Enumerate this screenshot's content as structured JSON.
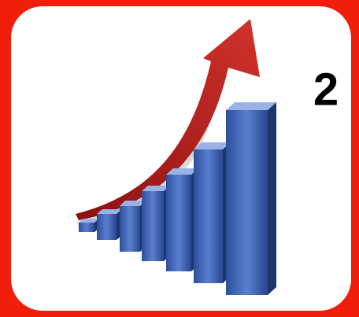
{
  "badge": {
    "label": "2"
  }
}
